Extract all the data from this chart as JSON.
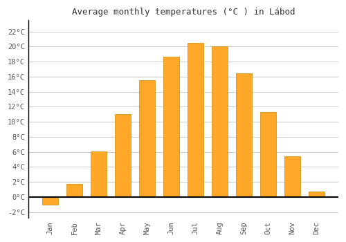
{
  "months": [
    "Jan",
    "Feb",
    "Mar",
    "Apr",
    "May",
    "Jun",
    "Jul",
    "Aug",
    "Sep",
    "Oct",
    "Nov",
    "Dec"
  ],
  "values": [
    -1.0,
    1.7,
    6.1,
    11.0,
    15.5,
    18.7,
    20.5,
    20.0,
    16.5,
    11.3,
    5.4,
    0.7
  ],
  "bar_color": "#FFA726",
  "bar_edge_color": "#CC8800",
  "title": "Average monthly temperatures (°C ) in Lábod",
  "title_fontsize": 9,
  "ytick_labels": [
    "-2°C",
    "0°C",
    "2°C",
    "4°C",
    "6°C",
    "8°C",
    "10°C",
    "12°C",
    "14°C",
    "16°C",
    "18°C",
    "20°C",
    "22°C"
  ],
  "ytick_values": [
    -2,
    0,
    2,
    4,
    6,
    8,
    10,
    12,
    14,
    16,
    18,
    20,
    22
  ],
  "ylim": [
    -2.8,
    23.5
  ],
  "background_color": "#ffffff",
  "grid_color": "#cccccc",
  "zero_line_color": "#000000",
  "tick_fontsize": 7.5,
  "bar_width": 0.65
}
